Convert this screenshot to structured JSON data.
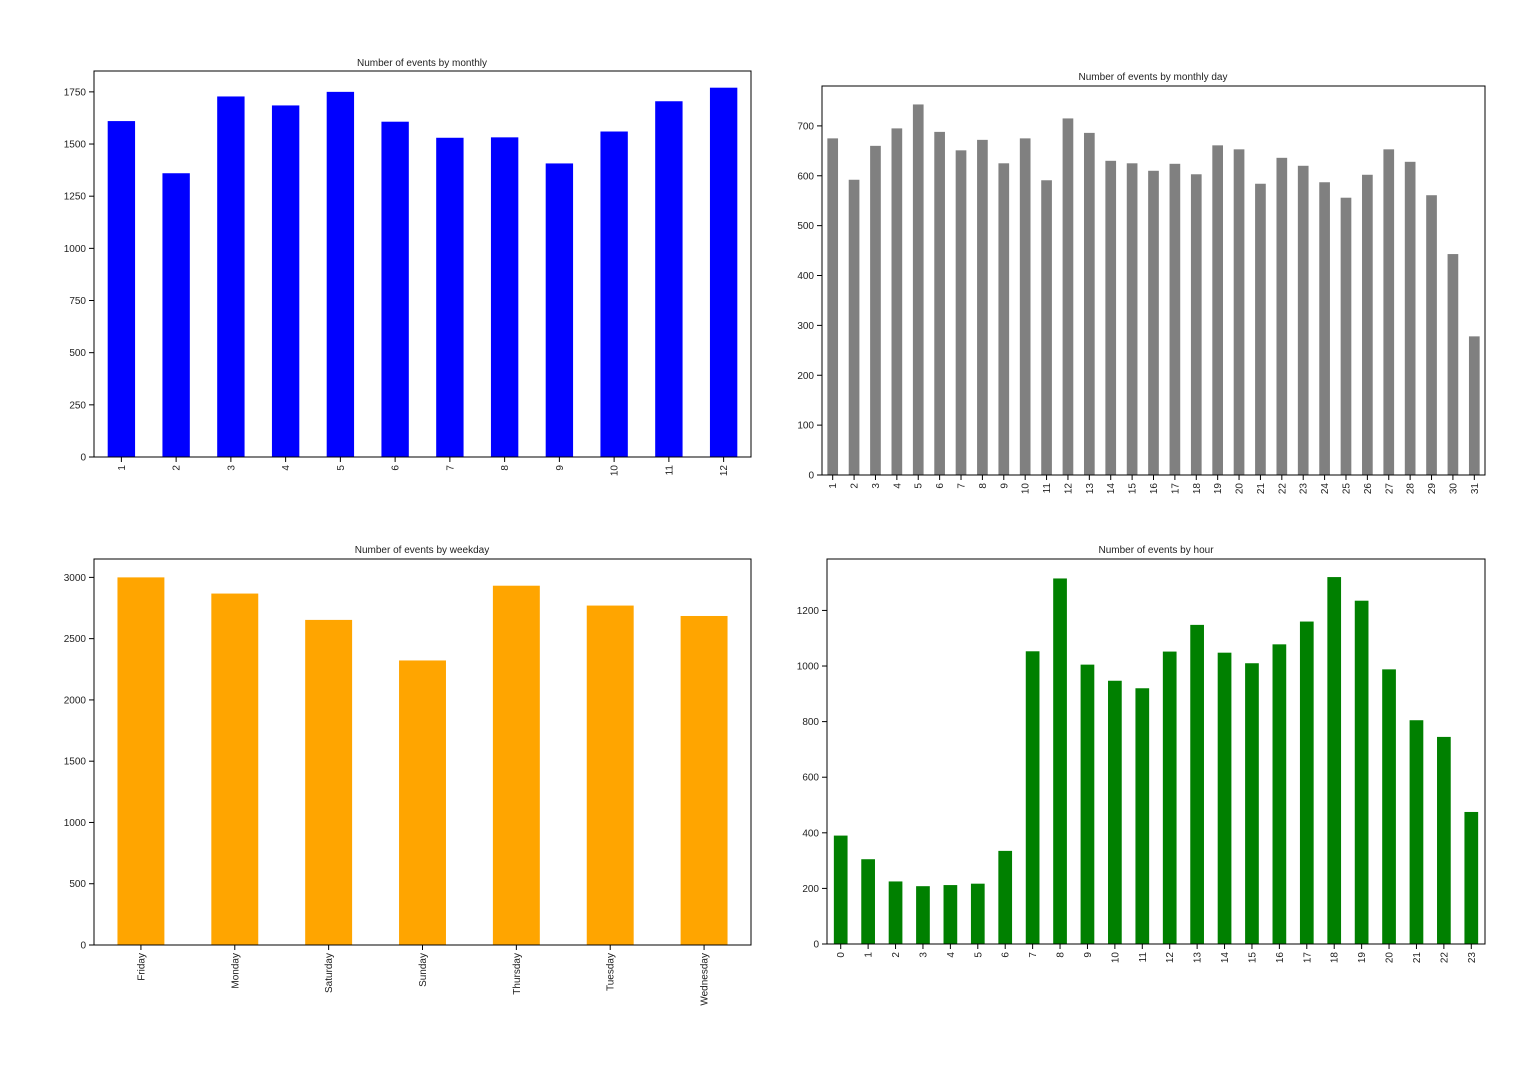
{
  "chart_data": [
    {
      "type": "bar",
      "title": "Number of events by monthly",
      "xlabel": "",
      "ylabel": "",
      "categories": [
        "1",
        "2",
        "3",
        "4",
        "5",
        "6",
        "7",
        "8",
        "9",
        "10",
        "11",
        "12"
      ],
      "values": [
        1610,
        1360,
        1728,
        1685,
        1750,
        1607,
        1530,
        1532,
        1407,
        1560,
        1705,
        1770
      ],
      "ylim": [
        0,
        1850
      ],
      "yticks": [
        0,
        250,
        500,
        750,
        1000,
        1250,
        1500,
        1750
      ],
      "color": "#0000ff",
      "tick_rotation": "vertical",
      "grid": false,
      "legend": "none"
    },
    {
      "type": "bar",
      "title": "Number of events by monthly day",
      "xlabel": "",
      "ylabel": "",
      "categories": [
        "1",
        "2",
        "3",
        "4",
        "5",
        "6",
        "7",
        "8",
        "9",
        "10",
        "11",
        "12",
        "13",
        "14",
        "15",
        "16",
        "17",
        "18",
        "19",
        "20",
        "21",
        "22",
        "23",
        "24",
        "25",
        "26",
        "27",
        "28",
        "29",
        "30",
        "31"
      ],
      "values": [
        675,
        592,
        660,
        695,
        743,
        688,
        651,
        672,
        625,
        675,
        591,
        715,
        686,
        630,
        625,
        610,
        624,
        603,
        661,
        653,
        584,
        636,
        620,
        587,
        556,
        602,
        653,
        628,
        561,
        443,
        278
      ],
      "ylim": [
        0,
        780
      ],
      "yticks": [
        0,
        100,
        200,
        300,
        400,
        500,
        600,
        700
      ],
      "color": "#808080",
      "tick_rotation": "vertical",
      "grid": false,
      "legend": "none"
    },
    {
      "type": "bar",
      "title": "Number of events by weekday",
      "xlabel": "",
      "ylabel": "",
      "categories": [
        "Friday",
        "Monday",
        "Saturday",
        "Sunday",
        "Thursday",
        "Tuesday",
        "Wednesday"
      ],
      "values": [
        3000,
        2868,
        2653,
        2322,
        2932,
        2770,
        2685
      ],
      "ylim": [
        0,
        3150
      ],
      "yticks": [
        0,
        500,
        1000,
        1500,
        2000,
        2500,
        3000
      ],
      "color": "#ffa500",
      "tick_rotation": "vertical",
      "grid": false,
      "legend": "none"
    },
    {
      "type": "bar",
      "title": "Number of events by hour",
      "xlabel": "",
      "ylabel": "",
      "categories": [
        "0",
        "1",
        "2",
        "3",
        "4",
        "5",
        "6",
        "7",
        "8",
        "9",
        "10",
        "11",
        "12",
        "13",
        "14",
        "15",
        "16",
        "17",
        "18",
        "19",
        "20",
        "21",
        "22",
        "23"
      ],
      "values": [
        390,
        305,
        225,
        208,
        212,
        217,
        335,
        1053,
        1315,
        1005,
        947,
        920,
        1052,
        1148,
        1048,
        1010,
        1078,
        1160,
        1320,
        1235,
        988,
        805,
        745,
        475
      ],
      "ylim": [
        0,
        1385
      ],
      "yticks": [
        0,
        200,
        400,
        600,
        800,
        1000,
        1200
      ],
      "color": "#008000",
      "tick_rotation": "vertical",
      "grid": false,
      "legend": "none"
    }
  ]
}
